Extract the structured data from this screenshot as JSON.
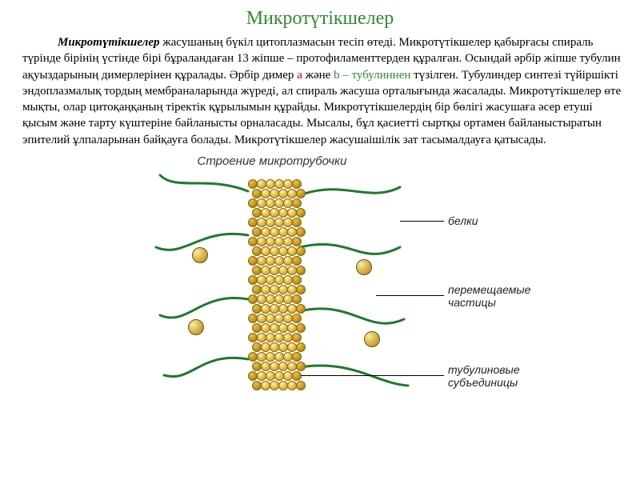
{
  "title": "Микротүтікшелер",
  "title_color": "#2e8b2e",
  "paragraph": {
    "lead_bold_italic": "Микротүтікшелер",
    "rest_1": " жасушаның бүкіл цитоплазмасын тесіп өтеді. Микротүтікшелер қабырғасы спираль түрінде бірінің үстінде бірі бұраландаған 13 жіпше – протофиламенттерден құралған. Осындай әрбір жіпше тубулин ақуыздарының димерлерінен құралады. Әрбір димер ",
    "highlight_a": "а",
    "mid": " және ",
    "highlight_b": "b – тубулиннен",
    "rest_2": " түзілген. Тубулиндер синтезі түйіршікті эндоплазмалық тордың мембраналарында жүреді, ал спираль жасуша орталығында жасалады. Микротүтікшелер өте мықты, олар цитоқаңқаның тіректік құрылымын құрайды. Микротүтікшелердің бір бөлігі жасушаға әсер етуші қысым және тарту күштеріне байланысты орналасады. Мысалы, бұл қасиетті сыртқы ортамен байланыстыратын эпителий ұлпаларынан байқауға болады. Микротүтікшелер жасушаішілік зат тасымалдауға қатысады."
  },
  "diagram": {
    "title": "Строение микротрубочки",
    "labels": {
      "proteins": "белки",
      "particles_l1": "перемещаемые",
      "particles_l2": "частицы",
      "subunits_l1": "тубулиновые",
      "subunits_l2": "субъединицы"
    },
    "tube": {
      "rows": 22,
      "cols": 6,
      "col_pitch": 11,
      "row_pitch": 12,
      "subunit_color_light": "#fff3c0",
      "subunit_color_mid": "#e8c24a",
      "subunit_color_dark": "#c79a1f"
    },
    "strand_color": "#1f7a2e",
    "particle_color": "#d9b54a",
    "label_line_color": "#000000"
  }
}
